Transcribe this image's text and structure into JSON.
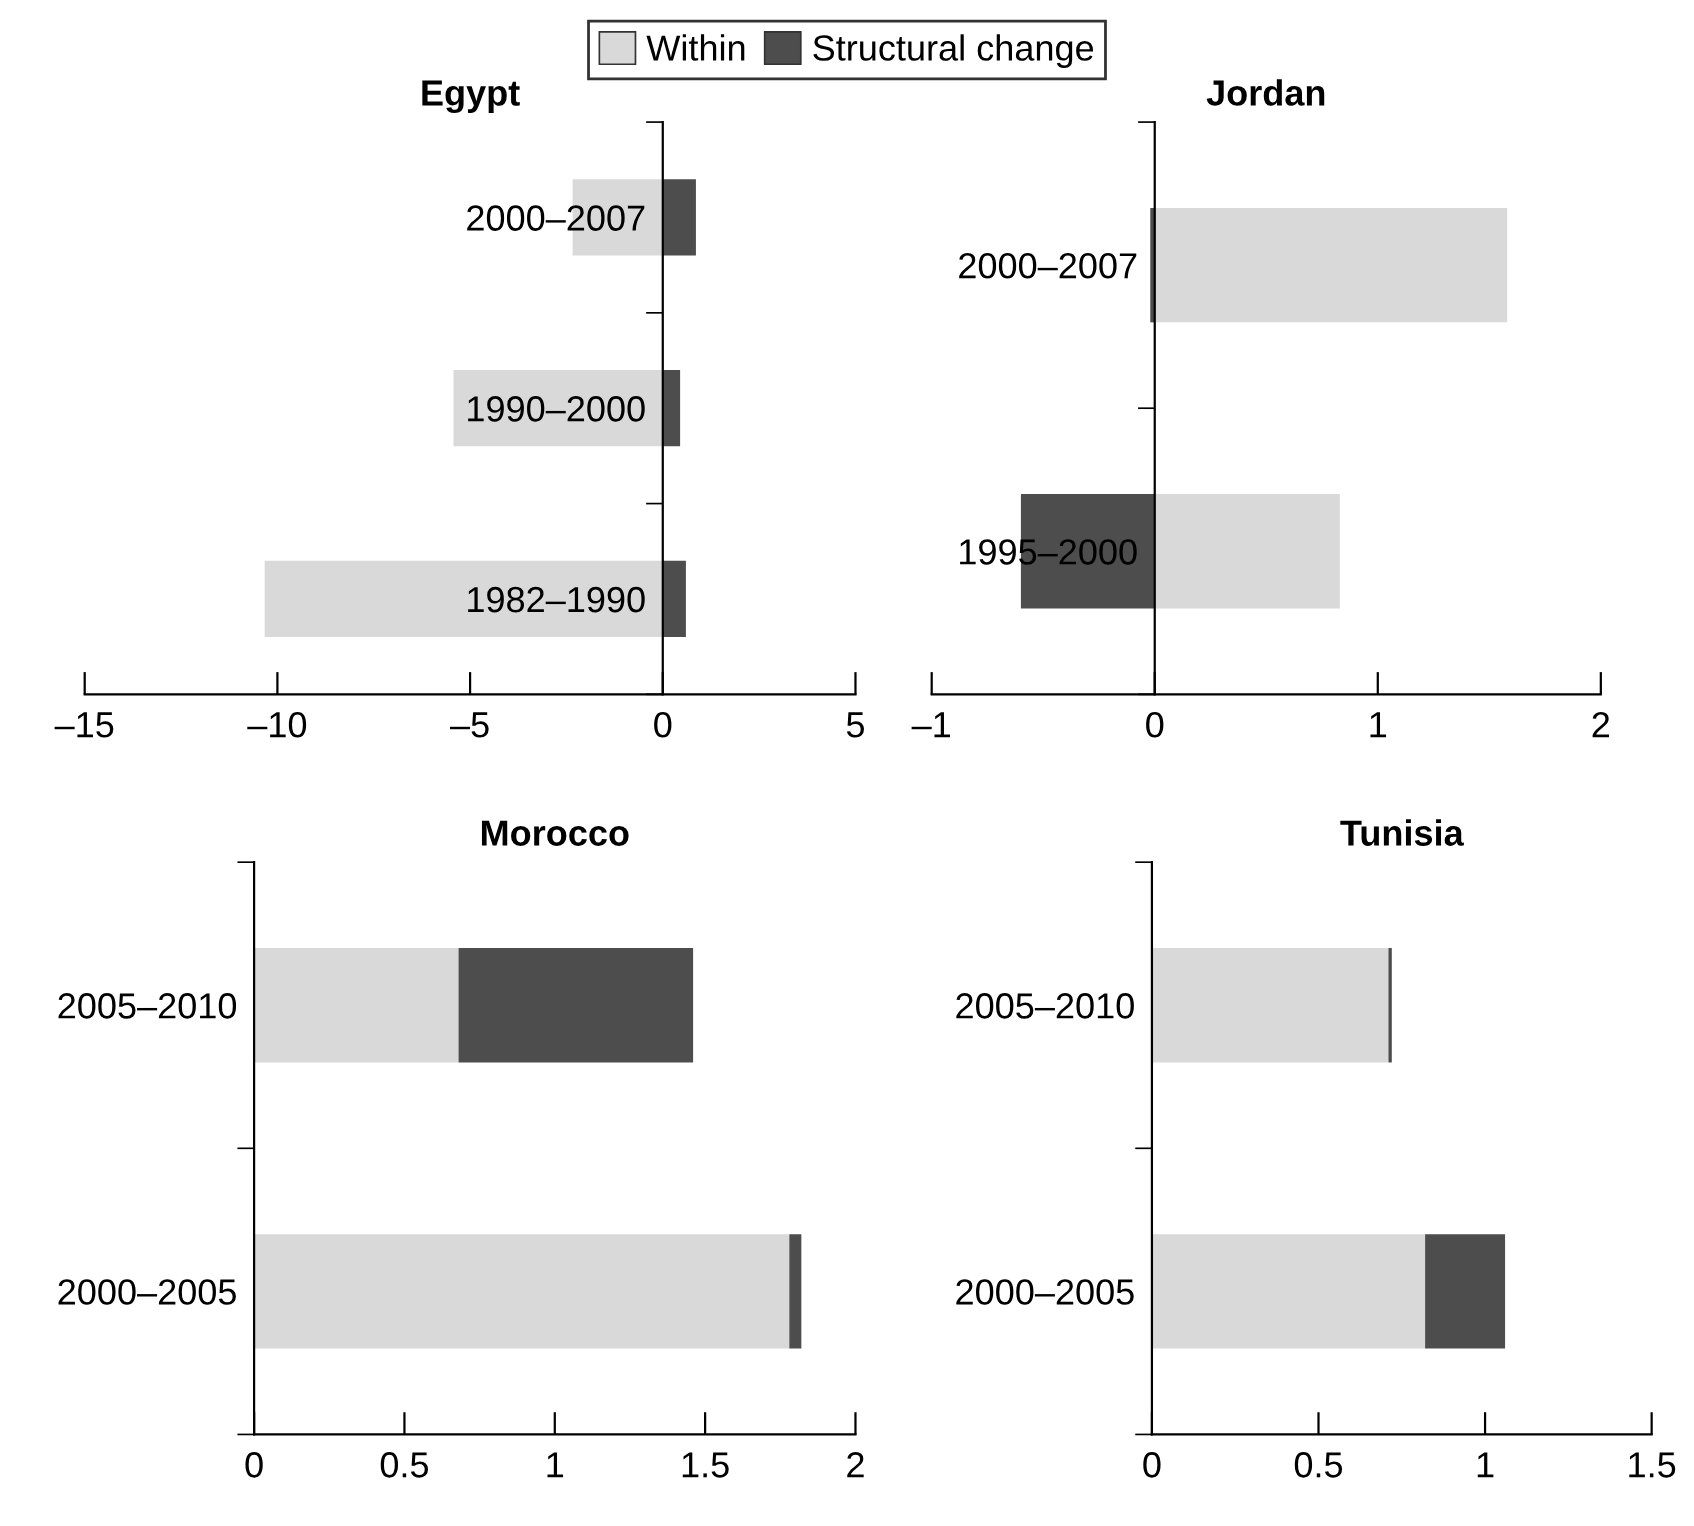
{
  "chart_data": [
    {
      "type": "bar",
      "orientation": "horizontal",
      "stacked": true,
      "title": "Egypt",
      "legend": "top",
      "categories": [
        "2000–2007",
        "1990–2000",
        "1982–1990"
      ],
      "xlim": [
        -15,
        5
      ],
      "xticks": [
        {
          "value": -15,
          "label": "–15"
        },
        {
          "value": -10,
          "label": "–10"
        },
        {
          "value": -5,
          "label": "–5"
        },
        0,
        5
      ],
      "series": [
        {
          "name": "Within",
          "color": "#d9d9d9",
          "values": [
            -2.34,
            -5.43,
            -10.33
          ]
        },
        {
          "name": "Structural change",
          "color": "#4d4d4d",
          "values": [
            0.86,
            0.45,
            0.6
          ]
        }
      ]
    },
    {
      "type": "bar",
      "orientation": "horizontal",
      "stacked": true,
      "title": "Jordan",
      "categories": [
        "2000–2007",
        "1995–2000"
      ],
      "xlim": [
        -1,
        2
      ],
      "xticks": [
        {
          "value": -1,
          "label": "–1"
        },
        0,
        1,
        2
      ],
      "series": [
        {
          "color": "#d9d9d9",
          "values": [
            1.58,
            0.83
          ]
        },
        {
          "color": "#4d4d4d",
          "values": [
            -0.02,
            -0.6
          ]
        }
      ]
    },
    {
      "type": "bar",
      "orientation": "horizontal",
      "stacked": true,
      "title": "Morocco",
      "categories": [
        "2005–2010",
        "2000–2005"
      ],
      "xlim": [
        0,
        2
      ],
      "xticks": [
        0,
        0.5,
        1,
        1.5,
        2
      ],
      "series": [
        {
          "color": "#d9d9d9",
          "values": [
            0.68,
            1.78
          ]
        },
        {
          "color": "#4d4d4d",
          "values": [
            0.78,
            0.04
          ]
        }
      ]
    },
    {
      "type": "bar",
      "orientation": "horizontal",
      "stacked": true,
      "title": "Tunisia",
      "categories": [
        "2005–2010",
        "2000–2005"
      ],
      "xlim": [
        0,
        1.5
      ],
      "xticks": [
        0,
        0.5,
        1,
        1.5
      ],
      "series": [
        {
          "color": "#d9d9d9",
          "values": [
            0.71,
            0.82
          ]
        },
        {
          "color": "#4d4d4d",
          "values": [
            0.01,
            0.24
          ]
        }
      ]
    }
  ]
}
